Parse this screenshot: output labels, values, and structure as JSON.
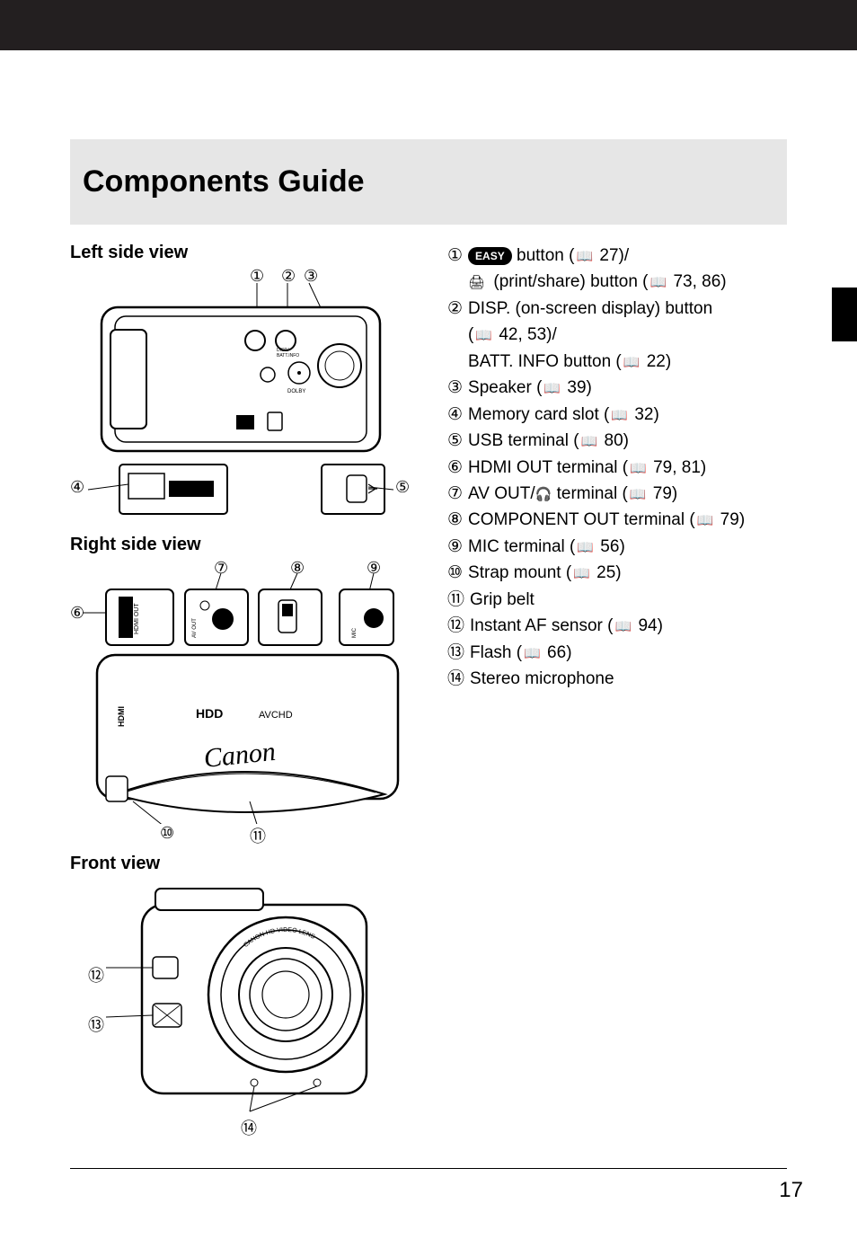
{
  "title": "Components Guide",
  "page_number": "17",
  "views": {
    "left": "Left side view",
    "right": "Right side view",
    "front": "Front view"
  },
  "callouts_left_top": [
    "①",
    "②",
    "③"
  ],
  "callouts_left_bottom": [
    "④",
    "⑤"
  ],
  "callouts_right_top": [
    "⑦",
    "⑧",
    "⑨"
  ],
  "callouts_right_left": [
    "⑥"
  ],
  "callouts_right_bottom": [
    "⑩",
    "⑪"
  ],
  "callouts_front": [
    "⑫",
    "⑬",
    "⑭"
  ],
  "refs": [
    {
      "n": "①",
      "lines": [
        "[EASY] button ([book] 27)/",
        "[print] (print/share) button ([book] 73, 86)"
      ]
    },
    {
      "n": "②",
      "lines": [
        "DISP. (on-screen display) button",
        "([book] 42, 53)/",
        "BATT. INFO button ([book] 22)"
      ]
    },
    {
      "n": "③",
      "lines": [
        "Speaker ([book] 39)"
      ]
    },
    {
      "n": "④",
      "lines": [
        "Memory card slot ([book] 32)"
      ]
    },
    {
      "n": "⑤",
      "lines": [
        "USB terminal ([book] 80)"
      ]
    },
    {
      "n": "⑥",
      "lines": [
        "HDMI OUT terminal ([book] 79, 81)"
      ]
    },
    {
      "n": "⑦",
      "lines": [
        "AV OUT/[hp] terminal ([book] 79)"
      ]
    },
    {
      "n": "⑧",
      "lines": [
        "COMPONENT OUT terminal ([book] 79)"
      ]
    },
    {
      "n": "⑨",
      "lines": [
        "MIC terminal ([book] 56)"
      ]
    },
    {
      "n": "⑩",
      "lines": [
        "Strap mount ([book] 25)"
      ]
    },
    {
      "n": "⑪",
      "lines": [
        "Grip belt"
      ]
    },
    {
      "n": "⑫",
      "lines": [
        "Instant AF sensor ([book] 94)"
      ]
    },
    {
      "n": "⑬",
      "lines": [
        "Flash ([book] 66)"
      ]
    },
    {
      "n": "⑭",
      "lines": [
        "Stereo microphone"
      ]
    }
  ],
  "diagram_labels": {
    "canon": "Canon",
    "hdd": "HDD",
    "avchd": "AVCHD",
    "hdmi_out": "HDMI OUT",
    "av_out": "AV OUT",
    "component_out": "COMPONENT OUT",
    "mic": "MIC",
    "dolby": "DOLBY",
    "disp": "DISP./",
    "batt": "BATT. INFO",
    "lens": "CANON HD VIDEO LENS",
    "zoom": "ZOOM 4.8-57.6mm 1:1.8"
  },
  "colors": {
    "band": "#e6e6e6",
    "black": "#231f20",
    "text": "#000000",
    "bg": "#ffffff"
  }
}
